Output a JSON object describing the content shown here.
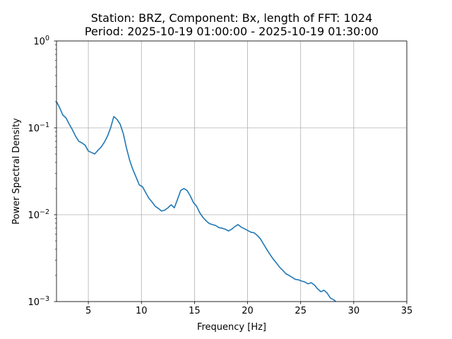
{
  "chart_data": {
    "type": "line",
    "title": "Station: BRZ, Component: Bx, length of FFT: 1024",
    "subtitle": "Period: 2025-10-19 01:00:00 - 2025-10-19 01:30:00",
    "xlabel": "Frequency [Hz]",
    "ylabel": "Power Spectral Density",
    "xlim": [
      2,
      35
    ],
    "ylim": [
      0.001,
      1
    ],
    "yscale": "log",
    "grid": true,
    "x_ticks": [
      5,
      10,
      15,
      20,
      25,
      30,
      35
    ],
    "x_tick_labels": [
      "5",
      "10",
      "15",
      "20",
      "25",
      "30",
      "35"
    ],
    "y_ticks": [
      0.001,
      0.01,
      0.1,
      1
    ],
    "y_tick_mantissa": [
      "10",
      "10",
      "10",
      "10"
    ],
    "y_tick_exponents": [
      "−3",
      "−2",
      "−1",
      "0"
    ],
    "series": [
      {
        "color": "#1f77b4",
        "x": [
          2.0,
          2.3,
          2.6,
          2.9,
          3.2,
          3.5,
          3.8,
          4.1,
          4.4,
          4.7,
          5.0,
          5.3,
          5.6,
          5.9,
          6.2,
          6.5,
          6.8,
          7.1,
          7.4,
          7.7,
          8.0,
          8.3,
          8.6,
          8.9,
          9.2,
          9.5,
          9.8,
          10.1,
          10.4,
          10.7,
          11.0,
          11.3,
          11.6,
          11.9,
          12.2,
          12.5,
          12.8,
          13.1,
          13.4,
          13.7,
          14.0,
          14.3,
          14.6,
          14.9,
          15.2,
          15.5,
          15.8,
          16.1,
          16.4,
          16.7,
          17.0,
          17.3,
          17.6,
          17.9,
          18.2,
          18.5,
          18.8,
          19.1,
          19.4,
          19.7,
          20.0,
          20.3,
          20.6,
          20.9,
          21.2,
          21.5,
          21.8,
          22.1,
          22.4,
          22.7,
          23.0,
          23.3,
          23.6,
          23.9,
          24.2,
          24.5,
          24.8,
          25.1,
          25.4,
          25.7,
          26.0,
          26.3,
          26.6,
          26.9,
          27.2,
          27.5,
          27.8,
          28.1,
          28.4
        ],
        "y": [
          0.2,
          0.17,
          0.14,
          0.13,
          0.11,
          0.095,
          0.08,
          0.07,
          0.067,
          0.063,
          0.054,
          0.052,
          0.05,
          0.055,
          0.06,
          0.068,
          0.08,
          0.1,
          0.135,
          0.125,
          0.11,
          0.085,
          0.058,
          0.042,
          0.033,
          0.027,
          0.022,
          0.021,
          0.018,
          0.0155,
          0.014,
          0.0125,
          0.0118,
          0.011,
          0.0113,
          0.012,
          0.013,
          0.012,
          0.015,
          0.019,
          0.02,
          0.019,
          0.0165,
          0.0138,
          0.0125,
          0.0105,
          0.0093,
          0.0085,
          0.0079,
          0.0077,
          0.0075,
          0.0071,
          0.007,
          0.0068,
          0.0065,
          0.0068,
          0.0073,
          0.0077,
          0.0072,
          0.0069,
          0.0066,
          0.0063,
          0.0062,
          0.0058,
          0.0053,
          0.0046,
          0.004,
          0.0035,
          0.0031,
          0.0028,
          0.0025,
          0.0023,
          0.0021,
          0.002,
          0.0019,
          0.0018,
          0.00178,
          0.00172,
          0.00168,
          0.0016,
          0.00165,
          0.00155,
          0.0014,
          0.0013,
          0.00135,
          0.00125,
          0.0011,
          0.00105,
          0.00098
        ]
      }
    ]
  }
}
